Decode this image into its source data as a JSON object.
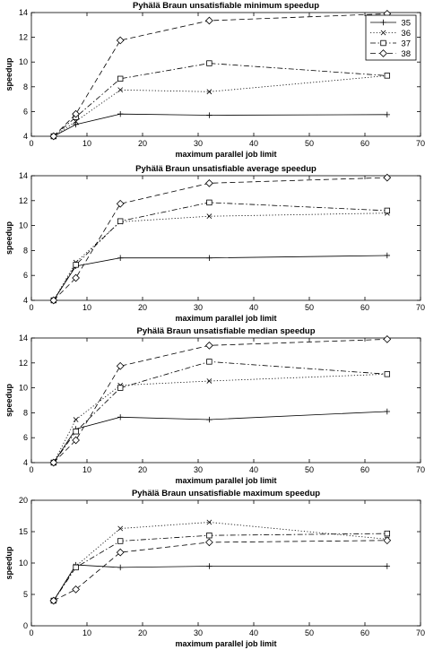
{
  "chart_data": [
    {
      "type": "line",
      "title": "Pyhälä Braun unsatisfiable minimum speedup",
      "xlabel": "maximum parallel job limit",
      "ylabel": "speedup",
      "xlim": [
        0,
        70
      ],
      "ylim": [
        4,
        14
      ],
      "xticks": [
        0,
        10,
        20,
        30,
        40,
        50,
        60,
        70
      ],
      "yticks": [
        4,
        6,
        8,
        10,
        12,
        14
      ],
      "x": [
        4,
        8,
        16,
        32,
        64
      ],
      "grid": false,
      "legend": "top-right",
      "series": [
        {
          "name": "35",
          "values": [
            4.0,
            4.95,
            5.8,
            5.7,
            5.75
          ]
        },
        {
          "name": "36",
          "values": [
            4.0,
            5.2,
            7.75,
            7.6,
            8.9
          ]
        },
        {
          "name": "37",
          "values": [
            4.0,
            5.55,
            8.65,
            9.9,
            8.9
          ]
        },
        {
          "name": "38",
          "values": [
            4.0,
            5.8,
            11.75,
            13.35,
            13.9
          ]
        }
      ]
    },
    {
      "type": "line",
      "title": "Pyhälä Braun unsatisfiable average speedup",
      "xlabel": "maximum parallel job limit",
      "ylabel": "speedup",
      "xlim": [
        0,
        70
      ],
      "ylim": [
        4,
        14
      ],
      "xticks": [
        0,
        10,
        20,
        30,
        40,
        50,
        60,
        70
      ],
      "yticks": [
        4,
        6,
        8,
        10,
        12,
        14
      ],
      "x": [
        4,
        8,
        16,
        32,
        64
      ],
      "grid": false,
      "series": [
        {
          "name": "35",
          "values": [
            4.0,
            6.75,
            7.4,
            7.4,
            7.6
          ]
        },
        {
          "name": "36",
          "values": [
            4.0,
            7.05,
            10.3,
            10.75,
            11.0
          ]
        },
        {
          "name": "37",
          "values": [
            4.0,
            6.85,
            10.35,
            11.85,
            11.2
          ]
        },
        {
          "name": "38",
          "values": [
            4.0,
            5.8,
            11.75,
            13.4,
            13.85
          ]
        }
      ]
    },
    {
      "type": "line",
      "title": "Pyhälä Braun unsatisfiable median speedup",
      "xlabel": "maximum parallel job limit",
      "ylabel": "speedup",
      "xlim": [
        0,
        70
      ],
      "ylim": [
        4,
        14
      ],
      "xticks": [
        0,
        10,
        20,
        30,
        40,
        50,
        60,
        70
      ],
      "yticks": [
        4,
        6,
        8,
        10,
        12,
        14
      ],
      "x": [
        4,
        8,
        16,
        32,
        64
      ],
      "grid": false,
      "series": [
        {
          "name": "35",
          "values": [
            4.0,
            6.7,
            7.65,
            7.45,
            8.1
          ]
        },
        {
          "name": "36",
          "values": [
            4.0,
            7.45,
            10.2,
            10.55,
            11.1
          ]
        },
        {
          "name": "37",
          "values": [
            4.0,
            6.5,
            10.0,
            12.1,
            11.1
          ]
        },
        {
          "name": "38",
          "values": [
            4.0,
            5.8,
            11.75,
            13.4,
            13.9
          ]
        }
      ]
    },
    {
      "type": "line",
      "title": "Pyhälä Braun unsatisfiable maximum speedup",
      "xlabel": "maximum parallel job limit",
      "ylabel": "speedup",
      "xlim": [
        0,
        70
      ],
      "ylim": [
        0,
        20
      ],
      "xticks": [
        0,
        10,
        20,
        30,
        40,
        50,
        60,
        70
      ],
      "yticks": [
        0,
        5,
        10,
        15,
        20
      ],
      "x": [
        4,
        8,
        16,
        32,
        64
      ],
      "grid": false,
      "series": [
        {
          "name": "35",
          "values": [
            4.0,
            9.7,
            9.3,
            9.5,
            9.5
          ]
        },
        {
          "name": "36",
          "values": [
            4.0,
            9.5,
            15.5,
            16.5,
            13.8
          ]
        },
        {
          "name": "37",
          "values": [
            4.0,
            9.3,
            13.5,
            14.4,
            14.7
          ]
        },
        {
          "name": "38",
          "values": [
            4.0,
            5.8,
            11.7,
            13.3,
            13.6
          ]
        }
      ]
    }
  ]
}
